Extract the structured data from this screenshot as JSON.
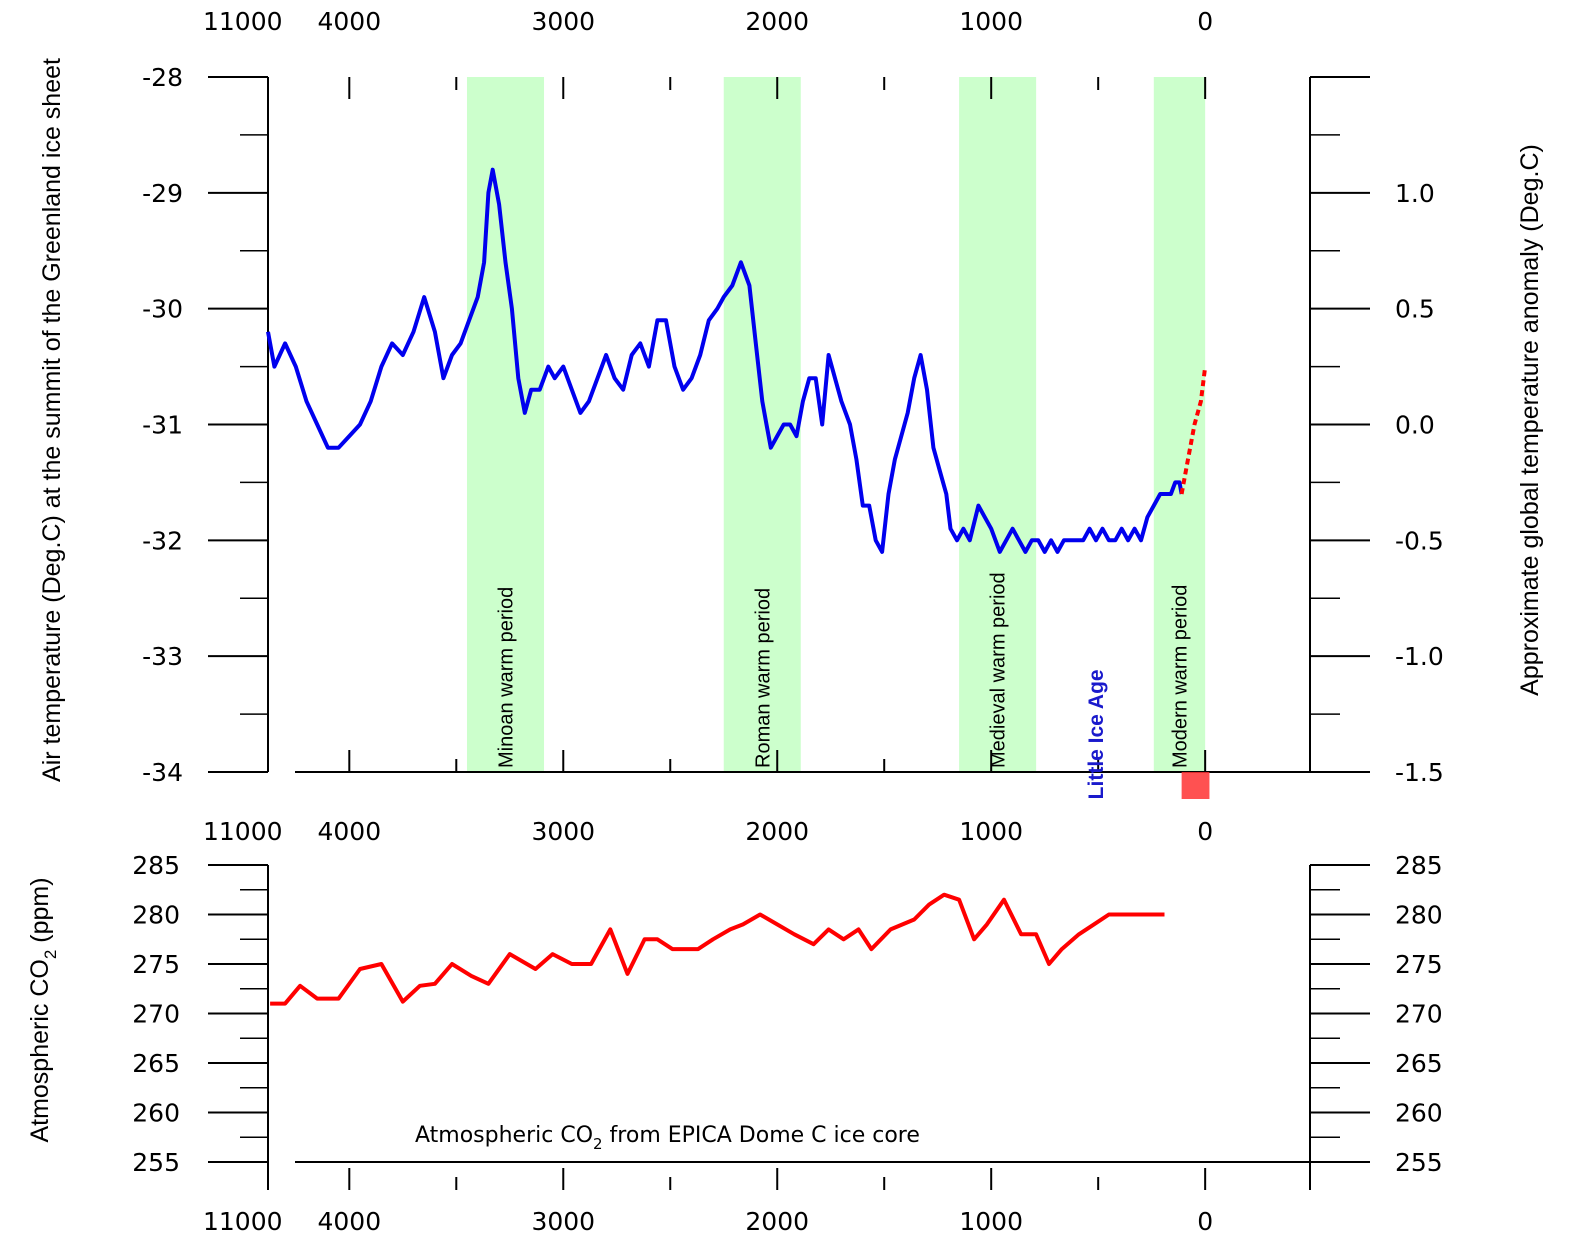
{
  "chart_data": [
    {
      "type": "line",
      "xlabel": "",
      "x_ticks": [
        "4000",
        "3000",
        "2000",
        "1000",
        "0"
      ],
      "x_ticks_full": [
        "11000",
        "4000",
        "3000",
        "2000",
        "1000",
        "0"
      ],
      "x_range": [
        4380,
        -490
      ],
      "ylabel_left": "Air temperature (Deg.C) at the summit of the Greenland ice sheet",
      "ylabel_right": "Approximate global temperature anomaly (Deg.C)",
      "ylim_left": [
        -34,
        -28
      ],
      "yticks_left": [
        "-28",
        "-29",
        "-30",
        "-31",
        "-32",
        "-33",
        "-34"
      ],
      "ylim_right": [
        -1.5,
        1.5
      ],
      "yticks_right": [
        "1.0",
        "0.5",
        "0.0",
        "-0.5",
        "-1.0",
        "-1.5"
      ],
      "bands": [
        {
          "label": "Minoan warm period",
          "start": 3450,
          "end": 3090,
          "color": "#ccffcc"
        },
        {
          "label": "Roman warm period",
          "start": 2250,
          "end": 1890,
          "color": "#ccffcc"
        },
        {
          "label": "Medieval warm period",
          "start": 1150,
          "end": 790,
          "color": "#ccffcc"
        },
        {
          "label": "Modern warm period",
          "start": 240,
          "end": 0,
          "color": "#ccffcc"
        }
      ],
      "annotation": {
        "text": "Little Ice Age",
        "x": 510,
        "y": -33.2,
        "color": "#1a1acc"
      },
      "series": [
        {
          "color": "#0000ee",
          "x": [
            4380,
            4350,
            4300,
            4250,
            4200,
            4150,
            4100,
            4050,
            4000,
            3950,
            3900,
            3850,
            3800,
            3750,
            3700,
            3650,
            3600,
            3560,
            3520,
            3480,
            3440,
            3400,
            3370,
            3350,
            3330,
            3300,
            3270,
            3240,
            3210,
            3180,
            3150,
            3110,
            3090,
            3070,
            3040,
            3000,
            2960,
            2920,
            2880,
            2840,
            2800,
            2760,
            2720,
            2680,
            2640,
            2600,
            2560,
            2520,
            2480,
            2440,
            2400,
            2360,
            2320,
            2280,
            2250,
            2210,
            2170,
            2130,
            2100,
            2070,
            2050,
            2030,
            2000,
            1970,
            1940,
            1910,
            1880,
            1850,
            1820,
            1790,
            1760,
            1730,
            1700,
            1660,
            1630,
            1600,
            1570,
            1540,
            1510,
            1480,
            1450,
            1420,
            1390,
            1360,
            1330,
            1300,
            1270,
            1240,
            1210,
            1190,
            1160,
            1130,
            1100,
            1060,
            1030,
            1000,
            980,
            960,
            930,
            900,
            870,
            840,
            810,
            780,
            750,
            720,
            690,
            660,
            630,
            600,
            570,
            540,
            510,
            480,
            450,
            420,
            390,
            360,
            330,
            300,
            270,
            240,
            210,
            180,
            160,
            140,
            120,
            110
          ],
          "y": [
            -30.2,
            -30.5,
            -30.3,
            -30.5,
            -30.8,
            -31.0,
            -31.2,
            -31.2,
            -31.1,
            -31.0,
            -30.8,
            -30.5,
            -30.3,
            -30.4,
            -30.2,
            -29.9,
            -30.2,
            -30.6,
            -30.4,
            -30.3,
            -30.1,
            -29.9,
            -29.6,
            -29.0,
            -28.8,
            -29.1,
            -29.6,
            -30.0,
            -30.6,
            -30.9,
            -30.7,
            -30.7,
            -30.6,
            -30.5,
            -30.6,
            -30.5,
            -30.7,
            -30.9,
            -30.8,
            -30.6,
            -30.4,
            -30.6,
            -30.7,
            -30.4,
            -30.3,
            -30.5,
            -30.1,
            -30.1,
            -30.5,
            -30.7,
            -30.6,
            -30.4,
            -30.1,
            -30.0,
            -29.9,
            -29.8,
            -29.6,
            -29.8,
            -30.3,
            -30.8,
            -31.0,
            -31.2,
            -31.1,
            -31.0,
            -31.0,
            -31.1,
            -30.8,
            -30.6,
            -30.6,
            -31.0,
            -30.4,
            -30.6,
            -30.8,
            -31.0,
            -31.3,
            -31.7,
            -31.7,
            -32.0,
            -32.1,
            -31.6,
            -31.3,
            -31.1,
            -30.9,
            -30.6,
            -30.4,
            -30.7,
            -31.2,
            -31.4,
            -31.6,
            -31.9,
            -32.0,
            -31.9,
            -32.0,
            -31.7,
            -31.8,
            -31.9,
            -32.0,
            -32.1,
            -32.0,
            -31.9,
            -32.0,
            -32.1,
            -32.0,
            -32.0,
            -32.1,
            -32.0,
            -32.1,
            -32.0,
            -32.0,
            -32.0,
            -32.0,
            -31.9,
            -32.0,
            -31.9,
            -32.0,
            -32.0,
            -31.9,
            -32.0,
            -31.9,
            -32.0,
            -31.8,
            -31.7,
            -31.6,
            -31.6,
            -31.6,
            -31.5,
            -31.5,
            -31.6
          ]
        },
        {
          "color": "#ff0000",
          "dashed": true,
          "x": [
            110,
            80,
            50,
            20,
            0
          ],
          "y": [
            -31.6,
            -31.3,
            -31.0,
            -30.8,
            -30.5
          ]
        }
      ]
    },
    {
      "type": "line",
      "xlabel": "",
      "x_ticks_full": [
        "11000",
        "4000",
        "3000",
        "2000",
        "1000",
        "0"
      ],
      "ylabel": "Atmospheric CO2 (ppm)",
      "ylabel_main": "Atmospheric CO",
      "ylabel_sub": "2",
      "ylabel_tail": " (ppm)",
      "ylim": [
        255,
        285
      ],
      "yticks": [
        "285",
        "280",
        "275",
        "270",
        "265",
        "260",
        "255"
      ],
      "annotation_main": "Atmospheric CO",
      "annotation_sub": "2",
      "annotation_tail": " from EPICA Dome C ice core",
      "series": [
        {
          "color": "#ff0000",
          "x": [
            4370,
            4300,
            4230,
            4150,
            4050,
            3950,
            3850,
            3750,
            3670,
            3600,
            3520,
            3430,
            3350,
            3250,
            3130,
            3050,
            2960,
            2870,
            2780,
            2700,
            2620,
            2560,
            2490,
            2440,
            2370,
            2300,
            2220,
            2160,
            2080,
            2000,
            1920,
            1830,
            1760,
            1690,
            1620,
            1560,
            1470,
            1360,
            1290,
            1220,
            1150,
            1080,
            1020,
            940,
            860,
            790,
            730,
            670,
            590,
            520,
            450,
            400,
            330,
            300,
            270,
            230,
            190
          ],
          "y": [
            271.0,
            271.0,
            272.8,
            271.5,
            271.5,
            274.5,
            275.0,
            271.2,
            272.8,
            273.0,
            275.0,
            273.8,
            273.0,
            276.0,
            274.5,
            276.0,
            275.0,
            275.0,
            278.5,
            274.0,
            277.5,
            277.5,
            276.5,
            276.5,
            276.5,
            277.5,
            278.5,
            279.0,
            280.0,
            279.0,
            278.0,
            277.0,
            278.5,
            277.5,
            278.5,
            276.5,
            278.5,
            279.5,
            281.0,
            282.0,
            281.5,
            277.5,
            279.0,
            281.5,
            278.0,
            278.0,
            275.0,
            276.5,
            278.0,
            279.0,
            280.0,
            280.0,
            280.0,
            280.0,
            280.0,
            280.0,
            280.0
          ]
        }
      ]
    }
  ]
}
